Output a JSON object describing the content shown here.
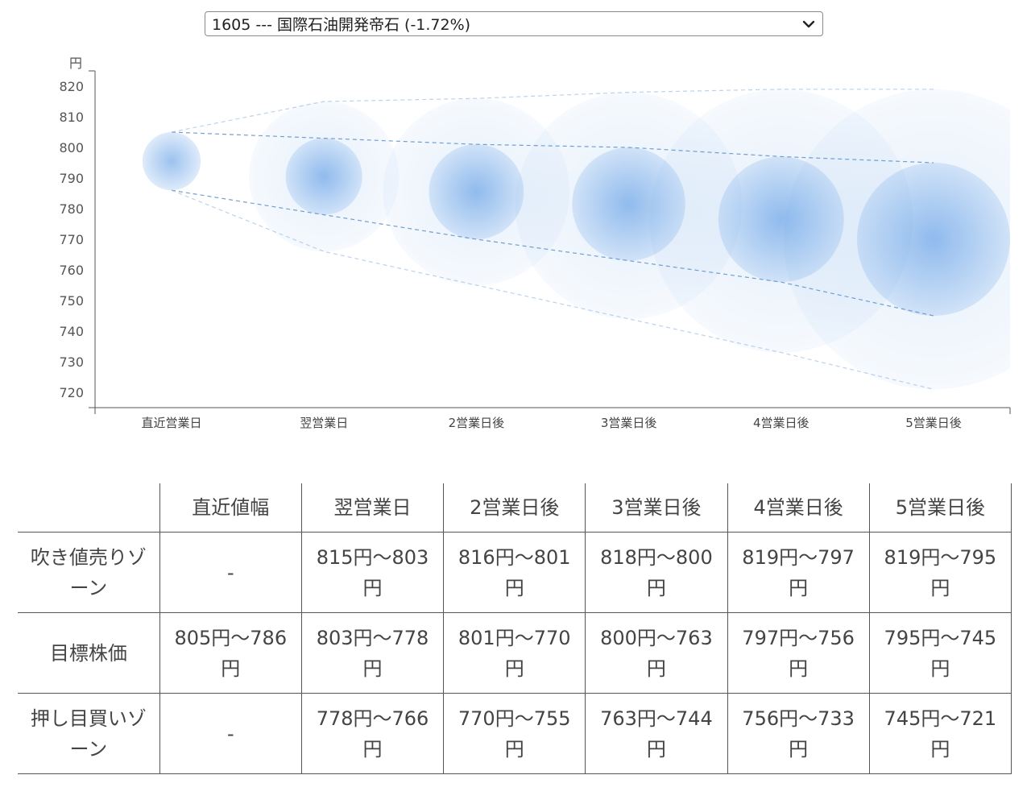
{
  "selector": {
    "value": "1605 --- 国際石油開発帝石 (-1.72%)"
  },
  "chart_data": {
    "type": "scatter",
    "ylabel": "円",
    "ylim": [
      715,
      825
    ],
    "yticks": [
      820,
      810,
      800,
      790,
      780,
      770,
      760,
      750,
      740,
      730,
      720
    ],
    "categories": [
      "直近営業日",
      "翌営業日",
      "2営業日後",
      "3営業日後",
      "4営業日後",
      "5営業日後"
    ],
    "center": [
      795.5,
      790.5,
      785.5,
      781.5,
      776.5,
      771
    ],
    "target_high": [
      805,
      803,
      801,
      800,
      797,
      795
    ],
    "target_low": [
      786,
      778,
      770,
      763,
      756,
      745
    ],
    "outer_high": [
      805,
      815,
      816,
      818,
      819,
      819
    ],
    "outer_low": [
      786,
      766,
      755,
      744,
      733,
      721
    ],
    "bubble_color": "#4a90e2"
  },
  "table": {
    "headers": [
      "",
      "直近値幅",
      "翌営業日",
      "2営業日後",
      "3営業日後",
      "4営業日後",
      "5営業日後"
    ],
    "rows": [
      [
        "吹き値売りゾーン",
        "-",
        "815円〜803円",
        "816円〜801円",
        "818円〜800円",
        "819円〜797円",
        "819円〜795円"
      ],
      [
        "目標株価",
        "805円〜786円",
        "803円〜778円",
        "801円〜770円",
        "800円〜763円",
        "797円〜756円",
        "795円〜745円"
      ],
      [
        "押し目買いゾーン",
        "-",
        "778円〜766円",
        "770円〜755円",
        "763円〜744円",
        "756円〜733円",
        "745円〜721円"
      ]
    ]
  }
}
